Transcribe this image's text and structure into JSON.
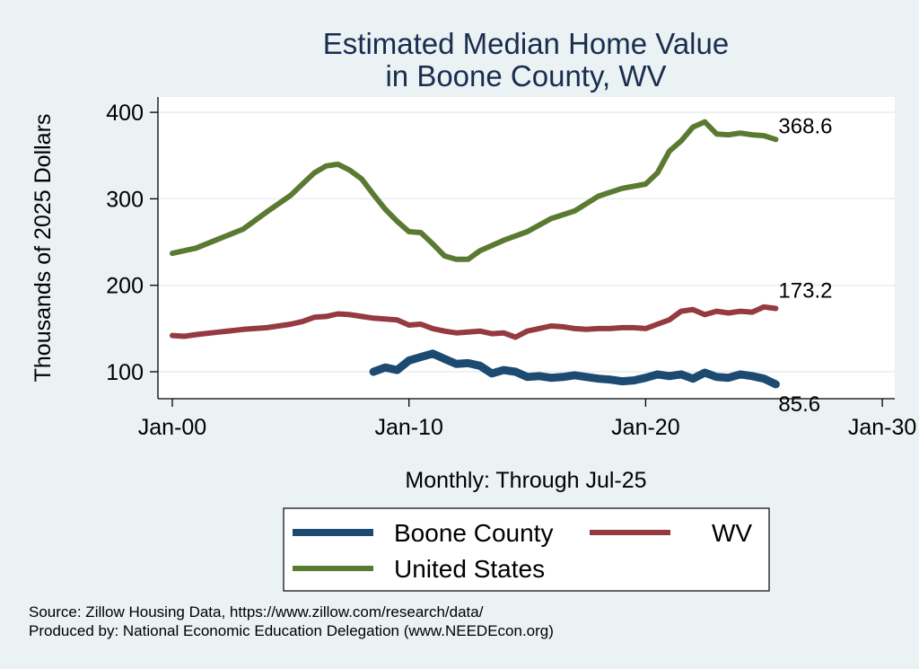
{
  "chart_data": {
    "type": "line",
    "title": [
      "Estimated Median Home Value",
      "in Boone County, WV"
    ],
    "xlabel": "Monthly: Through Jul-25",
    "ylabel": "Thousands of 2025 Dollars",
    "xlim": [
      2000,
      2030
    ],
    "ylim": [
      70,
      410
    ],
    "x_ticks": [
      {
        "value": 2000,
        "label": "Jan-00"
      },
      {
        "value": 2010,
        "label": "Jan-10"
      },
      {
        "value": 2020,
        "label": "Jan-20"
      },
      {
        "value": 2030,
        "label": "Jan-30"
      }
    ],
    "y_ticks": [
      {
        "value": 100,
        "label": "100"
      },
      {
        "value": 200,
        "label": "200"
      },
      {
        "value": 300,
        "label": "300"
      },
      {
        "value": 400,
        "label": "400"
      }
    ],
    "grid": true,
    "legend_position": "bottom",
    "series": [
      {
        "name": "Boone County",
        "color": "#1c4a70",
        "end_label": "85.6",
        "x": [
          2008.5,
          2009,
          2009.5,
          2010,
          2010.5,
          2011,
          2011.5,
          2012,
          2012.5,
          2013,
          2013.5,
          2014,
          2014.5,
          2015,
          2015.5,
          2016,
          2016.5,
          2017,
          2017.5,
          2018,
          2018.5,
          2019,
          2019.5,
          2020,
          2020.5,
          2021,
          2021.5,
          2022,
          2022.5,
          2023,
          2023.5,
          2024,
          2024.5,
          2025,
          2025.5
        ],
        "values": [
          100,
          105,
          102,
          113,
          117,
          121,
          115,
          109,
          110,
          107,
          98,
          102,
          100,
          94,
          95,
          93,
          94,
          96,
          94,
          92,
          91,
          89,
          90,
          93,
          97,
          95,
          97,
          92,
          99,
          94,
          93,
          97,
          95,
          92,
          85.6
        ]
      },
      {
        "name": "WV",
        "color": "#943a40",
        "end_label": "173.2",
        "x": [
          2000,
          2000.5,
          2001,
          2002,
          2003,
          2004,
          2005,
          2005.5,
          2006,
          2006.5,
          2007,
          2007.5,
          2008,
          2008.5,
          2009,
          2009.5,
          2010,
          2010.5,
          2011,
          2011.5,
          2012,
          2012.5,
          2013,
          2013.5,
          2014,
          2014.5,
          2015,
          2015.5,
          2016,
          2016.5,
          2017,
          2017.5,
          2018,
          2018.5,
          2019,
          2019.5,
          2020,
          2020.5,
          2021,
          2021.5,
          2022,
          2022.5,
          2023,
          2023.5,
          2024,
          2024.5,
          2025,
          2025.5
        ],
        "values": [
          142,
          141,
          143,
          146,
          149,
          151,
          155,
          158,
          163,
          164,
          167,
          166,
          164,
          162,
          161,
          160,
          154,
          155,
          150,
          147,
          145,
          146,
          147,
          144,
          145,
          140,
          147,
          150,
          153,
          152,
          150,
          149,
          150,
          150,
          151,
          151,
          150,
          155,
          160,
          170,
          172,
          166,
          170,
          168,
          170,
          169,
          175,
          173.2
        ]
      },
      {
        "name": "United States",
        "color": "#5a7a32",
        "end_label": "368.6",
        "x": [
          2000,
          2001,
          2002,
          2003,
          2004,
          2005,
          2005.5,
          2006,
          2006.5,
          2007,
          2007.5,
          2008,
          2008.5,
          2009,
          2009.5,
          2010,
          2010.5,
          2011,
          2011.5,
          2012,
          2012.5,
          2013,
          2014,
          2015,
          2016,
          2017,
          2018,
          2019,
          2020,
          2020.5,
          2021,
          2021.5,
          2022,
          2022.5,
          2023,
          2023.5,
          2024,
          2024.5,
          2025,
          2025.5
        ],
        "values": [
          237,
          243,
          254,
          265,
          285,
          304,
          317,
          330,
          338,
          340,
          333,
          323,
          305,
          288,
          274,
          262,
          261,
          248,
          234,
          230,
          230,
          240,
          252,
          262,
          277,
          286,
          303,
          312,
          317,
          330,
          355,
          367,
          383,
          389,
          375,
          374,
          376,
          374,
          373,
          368.6
        ]
      }
    ],
    "source_lines": [
      "Source: Zillow Housing Data, https://www.zillow.com/research/data/",
      "Produced by: National Economic Education Delegation (www.NEEDEcon.org)"
    ]
  }
}
